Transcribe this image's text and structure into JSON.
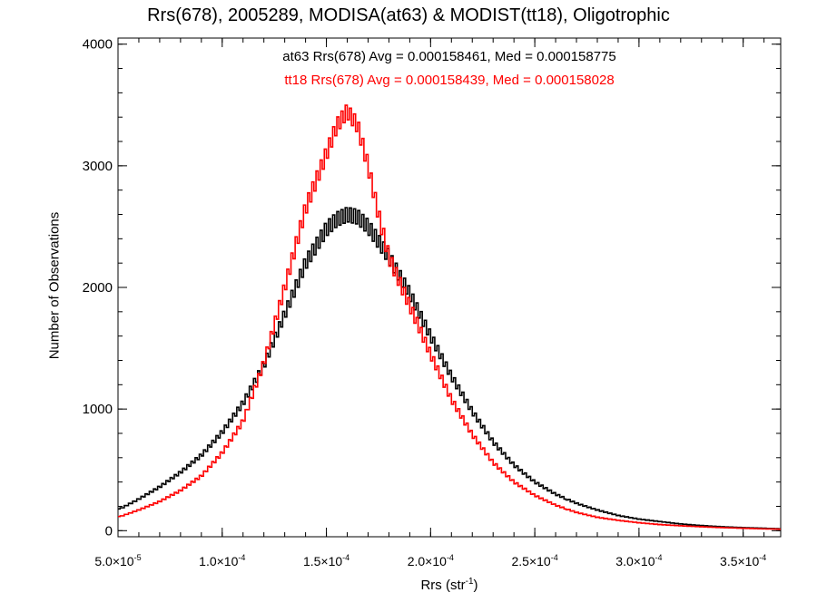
{
  "chart_data": {
    "type": "line",
    "title": "Rrs(678), 2005289, MODISA(at63) & MODIST(tt18), Oligotrophic",
    "xlabel_main": "Rrs (str",
    "xlabel_sup": "-1",
    "xlabel_close": ")",
    "ylabel": "Number of Observations",
    "xlim": [
      5e-05,
      0.000368
    ],
    "ylim": [
      -50,
      4050
    ],
    "x_tick_values": [
      5e-05,
      0.0001,
      0.00015,
      0.0002,
      0.00025,
      0.0003,
      0.00035
    ],
    "x_tick_mantissa": [
      "5.0",
      "1.0",
      "1.5",
      "2.0",
      "2.5",
      "3.0",
      "3.5"
    ],
    "x_tick_exponent": [
      "-5",
      "-4",
      "-4",
      "-4",
      "-4",
      "-4",
      "-4"
    ],
    "y_tick_values": [
      0,
      1000,
      2000,
      3000,
      4000
    ],
    "y_tick_labels": [
      "0",
      "1000",
      "2000",
      "3000",
      "4000"
    ],
    "legend_placement": "top-center",
    "series": [
      {
        "name": "at63",
        "color": "#000000",
        "label": "at63 Rrs(678) Avg = 0.000158461, Med = 0.000158775",
        "x": [
          5e-05,
          6e-05,
          7e-05,
          8e-05,
          9e-05,
          0.0001,
          0.00011,
          0.00012,
          0.00013,
          0.00014,
          0.00015,
          0.000155,
          0.00016,
          0.000165,
          0.00017,
          0.000175,
          0.00018,
          0.00019,
          0.0002,
          0.00021,
          0.00022,
          0.00023,
          0.00024,
          0.00025,
          0.00026,
          0.00027,
          0.00028,
          0.00029,
          0.0003,
          0.00031,
          0.00032,
          0.00033,
          0.00034,
          0.00035,
          0.00036,
          0.000368
        ],
        "y": [
          170,
          260,
          360,
          480,
          620,
          810,
          1050,
          1360,
          1780,
          2200,
          2480,
          2560,
          2600,
          2580,
          2500,
          2380,
          2250,
          1950,
          1600,
          1270,
          980,
          730,
          540,
          400,
          300,
          225,
          170,
          125,
          95,
          75,
          55,
          42,
          32,
          25,
          20,
          15
        ]
      },
      {
        "name": "tt18",
        "color": "#ff0000",
        "label": "tt18 Rrs(678) Avg = 0.000158439, Med = 0.000158028",
        "x": [
          5e-05,
          6e-05,
          7e-05,
          8e-05,
          9e-05,
          0.0001,
          0.00011,
          0.00012,
          0.00013,
          0.00014,
          0.00015,
          0.000155,
          0.00016,
          0.000165,
          0.00017,
          0.000175,
          0.00018,
          0.00019,
          0.0002,
          0.00021,
          0.00022,
          0.00023,
          0.00024,
          0.00025,
          0.00026,
          0.00027,
          0.00028,
          0.00029,
          0.0003,
          0.00031,
          0.00032,
          0.00033,
          0.00034,
          0.00035,
          0.00036,
          0.000368
        ],
        "y": [
          110,
          170,
          240,
          330,
          450,
          640,
          900,
          1380,
          2000,
          2650,
          3100,
          3330,
          3450,
          3330,
          3000,
          2600,
          2250,
          1850,
          1450,
          1080,
          790,
          560,
          400,
          290,
          210,
          150,
          110,
          85,
          65,
          50,
          40,
          32,
          25,
          20,
          15,
          12
        ]
      }
    ]
  }
}
